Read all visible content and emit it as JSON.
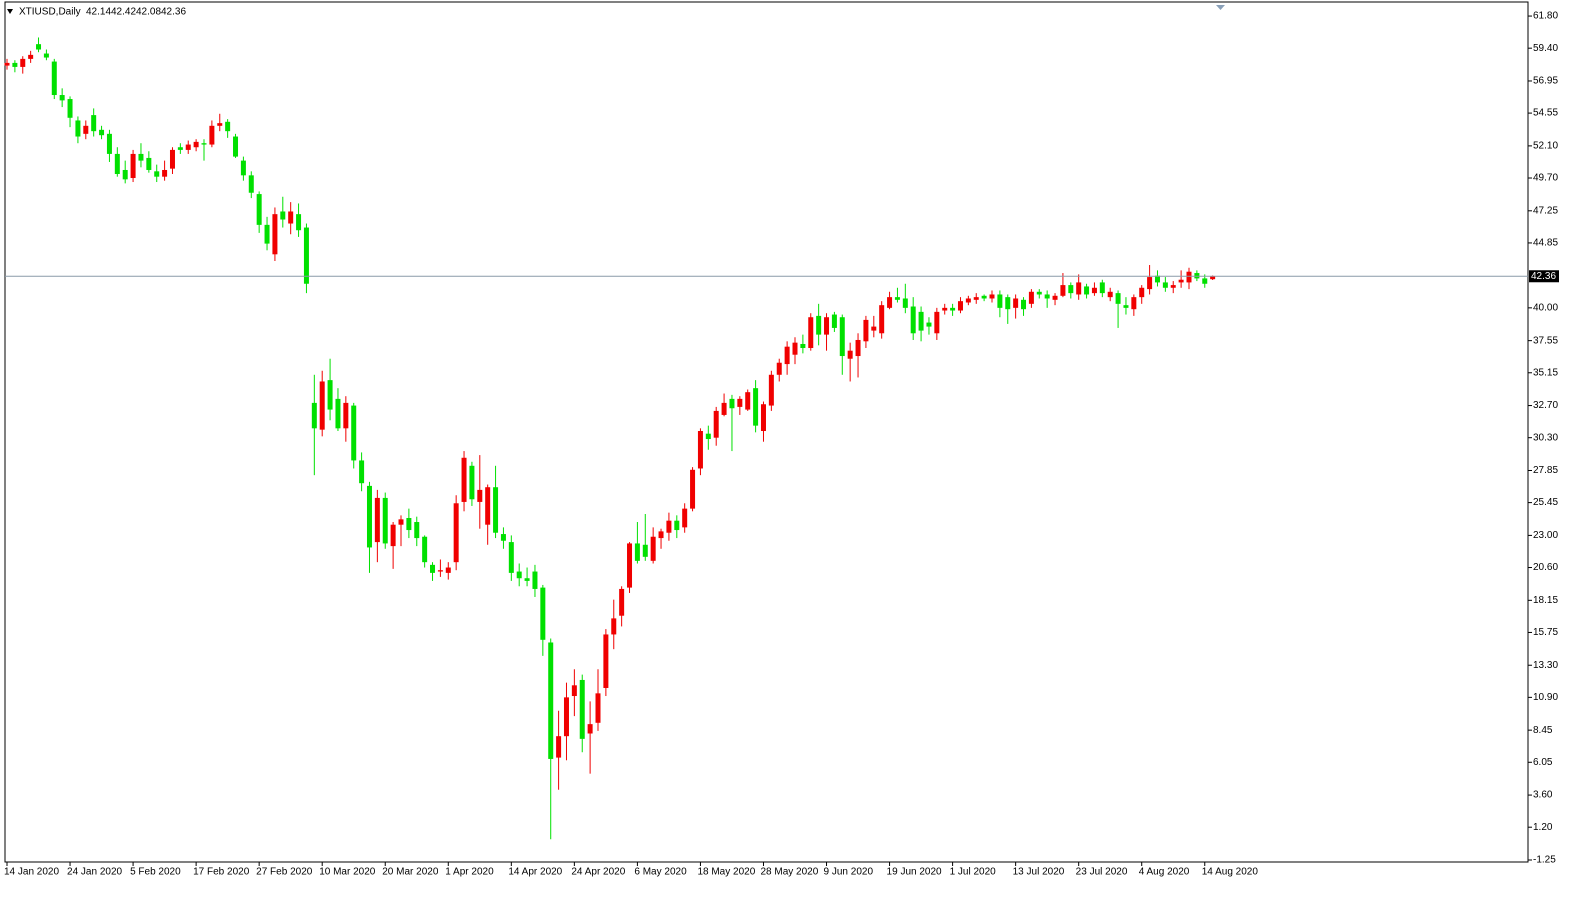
{
  "chart_data": {
    "type": "candlestick",
    "symbol": "XTIUSD,Daily",
    "up_color": "#f00000",
    "down_color": "#00e000",
    "last_line_color": "#8a9aa8",
    "categories": [
      "14 Jan 2020",
      null,
      null,
      null,
      null,
      null,
      null,
      null,
      "24 Jan 2020",
      null,
      null,
      null,
      null,
      null,
      null,
      null,
      "5 Feb 2020",
      null,
      null,
      null,
      null,
      null,
      null,
      null,
      "17 Feb 2020",
      null,
      null,
      null,
      null,
      null,
      null,
      null,
      "27 Feb 2020",
      null,
      null,
      null,
      null,
      null,
      null,
      null,
      "10 Mar 2020",
      null,
      null,
      null,
      null,
      null,
      null,
      null,
      "20 Mar 2020",
      null,
      null,
      null,
      null,
      null,
      null,
      null,
      "1 Apr 2020",
      null,
      null,
      null,
      null,
      null,
      null,
      null,
      "14 Apr 2020",
      null,
      null,
      null,
      null,
      null,
      null,
      null,
      "24 Apr 2020",
      null,
      null,
      null,
      null,
      null,
      null,
      null,
      "6 May 2020",
      null,
      null,
      null,
      null,
      null,
      null,
      null,
      "18 May 2020",
      null,
      null,
      null,
      null,
      null,
      null,
      null,
      "28 May 2020",
      null,
      null,
      null,
      null,
      null,
      null,
      null,
      "9 Jun 2020",
      null,
      null,
      null,
      null,
      null,
      null,
      null,
      "19 Jun 2020",
      null,
      null,
      null,
      null,
      null,
      null,
      null,
      "1 Jul 2020",
      null,
      null,
      null,
      null,
      null,
      null,
      null,
      "13 Jul 2020",
      null,
      null,
      null,
      null,
      null,
      null,
      null,
      "23 Jul 2020",
      null,
      null,
      null,
      null,
      null,
      null,
      null,
      "4 Aug 2020",
      null,
      null,
      null,
      null,
      null,
      null,
      null,
      "14 Aug 2020",
      null
    ],
    "open": [
      58.1,
      58.3,
      58.0,
      58.6,
      59.7,
      59.0,
      58.4,
      55.9,
      55.6,
      54.0,
      53.0,
      54.4,
      53.3,
      53.0,
      51.5,
      50.3,
      49.7,
      51.5,
      51.2,
      50.2,
      49.8,
      50.4,
      52.0,
      51.8,
      52.0,
      52.3,
      52.2,
      53.6,
      53.9,
      52.8,
      51.0,
      49.9,
      48.5,
      46.2,
      44.0,
      47.2,
      46.3,
      47.0,
      46.0,
      32.9,
      30.9,
      34.6,
      33.2,
      31.0,
      32.7,
      28.6,
      26.7,
      22.5,
      25.8,
      22.2,
      23.8,
      24.3,
      24.0,
      22.9,
      20.8,
      20.3,
      20.2,
      21.0,
      25.5,
      28.2,
      25.5,
      23.8,
      26.6,
      23.1,
      22.5,
      20.3,
      19.8,
      20.3,
      19.1,
      15.0,
      6.4,
      8.0,
      11.0,
      12.2,
      8.2,
      9.0,
      11.6,
      15.6,
      17.0,
      19.1,
      22.4,
      22.3,
      21.1,
      22.8,
      23.2,
      24.1,
      23.6,
      25.0,
      28.0,
      30.6,
      30.3,
      32.0,
      33.2,
      32.6,
      32.4,
      34.0,
      30.8,
      32.7,
      35.0,
      35.8,
      36.5,
      37.3,
      37.0,
      39.4,
      38.0,
      39.5,
      39.3,
      36.2,
      36.4,
      37.5,
      38.3,
      38.1,
      40.0,
      40.8,
      40.7,
      40.1,
      39.7,
      38.9,
      38.1,
      39.8,
      40.0,
      39.8,
      40.4,
      40.6,
      40.9,
      40.7,
      41.0,
      40.8,
      40.0,
      40.6,
      40.3,
      41.2,
      41.0,
      40.6,
      40.9,
      41.7,
      41.0,
      41.6,
      41.1,
      41.9,
      40.8,
      41.1,
      40.2,
      39.9,
      40.8,
      41.4,
      42.4,
      41.9,
      41.5,
      41.9,
      41.9,
      42.6,
      42.2,
      42.14
    ],
    "high": [
      58.6,
      58.5,
      58.8,
      59.2,
      60.2,
      59.3,
      58.6,
      56.4,
      55.8,
      54.3,
      54.0,
      54.9,
      53.6,
      53.3,
      52.0,
      51.0,
      51.8,
      52.3,
      51.7,
      50.7,
      51.0,
      52.0,
      52.3,
      52.5,
      52.6,
      52.6,
      54.0,
      54.5,
      54.1,
      53.0,
      51.3,
      50.2,
      48.7,
      46.8,
      47.5,
      48.3,
      47.9,
      47.8,
      46.3,
      35.0,
      35.3,
      36.2,
      34.0,
      33.4,
      32.9,
      29.2,
      27.0,
      26.4,
      26.2,
      24.0,
      24.5,
      25.0,
      24.4,
      23.0,
      21.0,
      21.2,
      21.0,
      26.0,
      29.3,
      28.5,
      29.0,
      26.8,
      28.2,
      23.6,
      23.0,
      20.9,
      20.6,
      20.8,
      19.3,
      15.3,
      9.9,
      12.0,
      13.0,
      12.6,
      10.6,
      13.0,
      16.0,
      18.2,
      19.2,
      22.5,
      24.0,
      24.6,
      23.6,
      23.5,
      24.7,
      24.5,
      25.4,
      28.1,
      31.0,
      31.2,
      32.6,
      33.6,
      33.5,
      33.4,
      33.9,
      34.6,
      33.0,
      35.3,
      36.2,
      37.5,
      37.8,
      38.0,
      39.6,
      40.3,
      39.6,
      39.7,
      39.5,
      37.4,
      38.1,
      39.4,
      39.4,
      40.5,
      41.2,
      41.5,
      41.8,
      40.8,
      40.1,
      39.3,
      40.0,
      40.3,
      40.3,
      40.8,
      40.9,
      41.1,
      41.0,
      41.3,
      41.3,
      41.0,
      41.0,
      40.8,
      41.4,
      41.4,
      41.3,
      41.1,
      42.6,
      41.9,
      42.5,
      41.8,
      41.9,
      42.1,
      41.5,
      41.3,
      40.8,
      41.0,
      41.7,
      43.2,
      42.8,
      42.3,
      42.0,
      42.8,
      43.0,
      42.8,
      42.5,
      42.42
    ],
    "low": [
      57.8,
      57.6,
      57.5,
      58.3,
      59.1,
      58.5,
      55.6,
      55.0,
      53.5,
      52.3,
      52.6,
      52.8,
      52.6,
      50.9,
      49.8,
      49.3,
      49.4,
      50.5,
      50.1,
      49.4,
      49.5,
      50.0,
      51.5,
      51.5,
      51.7,
      51.0,
      52.0,
      53.2,
      52.7,
      51.2,
      49.5,
      48.2,
      45.6,
      44.3,
      43.5,
      46.0,
      45.5,
      45.3,
      41.1,
      27.5,
      30.4,
      31.6,
      30.8,
      30.0,
      28.0,
      26.3,
      20.2,
      21.0,
      22.0,
      20.5,
      22.2,
      22.8,
      22.2,
      20.6,
      19.6,
      19.9,
      19.7,
      20.4,
      24.8,
      25.2,
      23.5,
      22.3,
      22.8,
      22.0,
      19.6,
      19.2,
      19.2,
      18.4,
      14.0,
      0.3,
      4.0,
      6.2,
      9.5,
      6.8,
      5.2,
      8.4,
      11.0,
      14.5,
      16.2,
      18.7,
      20.9,
      21.1,
      20.9,
      22.0,
      22.6,
      22.8,
      23.2,
      24.8,
      27.5,
      29.4,
      29.7,
      31.9,
      29.3,
      32.0,
      32.3,
      30.7,
      30.0,
      32.3,
      34.5,
      35.0,
      35.8,
      36.6,
      36.8,
      37.2,
      36.8,
      38.2,
      35.0,
      34.5,
      34.8,
      37.0,
      37.8,
      37.7,
      39.9,
      40.4,
      39.6,
      37.6,
      37.5,
      38.0,
      37.6,
      39.5,
      39.4,
      39.6,
      40.2,
      40.3,
      40.5,
      40.4,
      39.3,
      38.8,
      39.2,
      39.4,
      40.0,
      40.7,
      40.0,
      40.2,
      40.8,
      40.7,
      40.6,
      40.7,
      40.9,
      40.8,
      40.5,
      38.5,
      39.5,
      39.4,
      40.3,
      41.0,
      41.6,
      41.2,
      41.1,
      41.5,
      41.4,
      42.0,
      41.5,
      42.08
    ],
    "close": [
      58.3,
      58.0,
      58.6,
      58.9,
      59.3,
      58.7,
      55.9,
      55.5,
      54.2,
      52.8,
      53.6,
      53.2,
      52.9,
      51.5,
      50.0,
      49.6,
      51.5,
      51.0,
      50.3,
      49.8,
      50.3,
      51.8,
      51.8,
      52.2,
      52.4,
      52.2,
      53.6,
      53.8,
      53.2,
      51.3,
      49.9,
      48.6,
      46.2,
      44.8,
      47.0,
      46.6,
      47.2,
      45.8,
      41.8,
      31.0,
      34.5,
      32.4,
      31.0,
      32.9,
      28.6,
      26.9,
      22.1,
      25.8,
      22.4,
      23.8,
      24.2,
      23.4,
      22.8,
      21.0,
      20.2,
      20.4,
      20.6,
      25.4,
      28.8,
      25.7,
      26.4,
      26.6,
      23.2,
      22.6,
      20.2,
      19.8,
      19.6,
      19.0,
      15.2,
      6.3,
      8.0,
      10.9,
      11.8,
      7.8,
      8.9,
      11.2,
      15.6,
      16.8,
      19.0,
      22.4,
      21.1,
      21.4,
      22.9,
      23.3,
      24.1,
      23.4,
      25.0,
      27.9,
      30.8,
      30.2,
      32.3,
      32.9,
      32.5,
      33.2,
      33.7,
      31.2,
      32.8,
      35.0,
      35.9,
      37.1,
      37.4,
      37.0,
      39.3,
      38.0,
      39.3,
      38.5,
      36.4,
      36.8,
      37.6,
      39.1,
      38.6,
      40.2,
      40.8,
      40.6,
      40.0,
      38.1,
      38.3,
      38.6,
      39.7,
      40.0,
      39.8,
      40.5,
      40.7,
      40.8,
      40.7,
      41.0,
      40.0,
      39.9,
      40.7,
      39.9,
      41.2,
      41.0,
      40.7,
      40.9,
      41.7,
      41.1,
      41.9,
      41.0,
      41.5,
      41.1,
      41.2,
      40.3,
      40.0,
      40.8,
      41.5,
      42.3,
      41.9,
      41.5,
      41.7,
      42.1,
      42.7,
      42.2,
      41.8,
      42.36
    ],
    "ylim": [
      -1.4,
      62.85
    ],
    "yticks": [
      {
        "value": 61.8,
        "label": "61.80"
      },
      {
        "value": 59.4,
        "label": "59.40"
      },
      {
        "value": 56.95,
        "label": "56.95"
      },
      {
        "value": 54.55,
        "label": "54.55"
      },
      {
        "value": 52.1,
        "label": "52.10"
      },
      {
        "value": 49.7,
        "label": "49.70"
      },
      {
        "value": 47.25,
        "label": "47.25"
      },
      {
        "value": 44.85,
        "label": "44.85"
      },
      {
        "value": 40,
        "label": "40.00"
      },
      {
        "value": 37.55,
        "label": "37.55"
      },
      {
        "value": 35.15,
        "label": "35.15"
      },
      {
        "value": 32.7,
        "label": "32.70"
      },
      {
        "value": 30.3,
        "label": "30.30"
      },
      {
        "value": 27.85,
        "label": "27.85"
      },
      {
        "value": 25.45,
        "label": "25.45"
      },
      {
        "value": 23,
        "label": "23.00"
      },
      {
        "value": 20.6,
        "label": "20.60"
      },
      {
        "value": 18.15,
        "label": "18.15"
      },
      {
        "value": 15.75,
        "label": "15.75"
      },
      {
        "value": 13.3,
        "label": "13.30"
      },
      {
        "value": 10.9,
        "label": "10.90"
      },
      {
        "value": 8.45,
        "label": "8.45"
      },
      {
        "value": 6.05,
        "label": "6.05"
      },
      {
        "value": 3.6,
        "label": "3.60"
      },
      {
        "value": 1.2,
        "label": "1.20"
      },
      {
        "value": -1.25,
        "label": "-1.25"
      }
    ],
    "grid": false
  }
}
